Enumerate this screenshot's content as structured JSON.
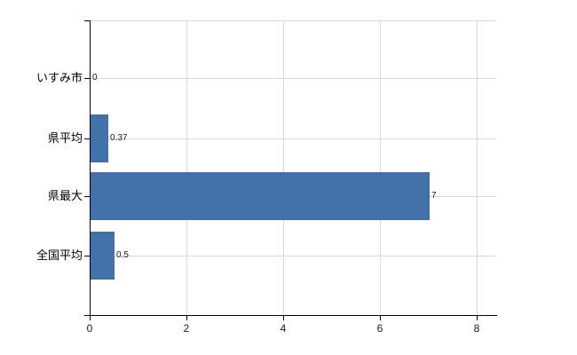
{
  "chart_data": {
    "type": "bar",
    "orientation": "horizontal",
    "title": "",
    "xlabel": "",
    "ylabel": "",
    "categories": [
      "いすみ市",
      "県平均",
      "県最大",
      "全国平均"
    ],
    "values": [
      0,
      0.37,
      7,
      0.5
    ],
    "value_labels": [
      "0",
      "0.37",
      "7",
      "0.5"
    ],
    "x_ticks": [
      0,
      2,
      4,
      6,
      8
    ],
    "x_tick_labels": [
      "0",
      "2",
      "4",
      "6",
      "8"
    ],
    "xlim": [
      0,
      8.4
    ],
    "grid": true,
    "legend": "none",
    "colors": {
      "bar": "#4171a8",
      "gridline": "#d9d9d9",
      "plot_top_border": "#d9d9d9",
      "axis": "#000000",
      "category_label": "#000000",
      "x_tick_label": "#1a1a1a",
      "value_label": "#1a1a1a",
      "background": "#ffffff"
    }
  }
}
